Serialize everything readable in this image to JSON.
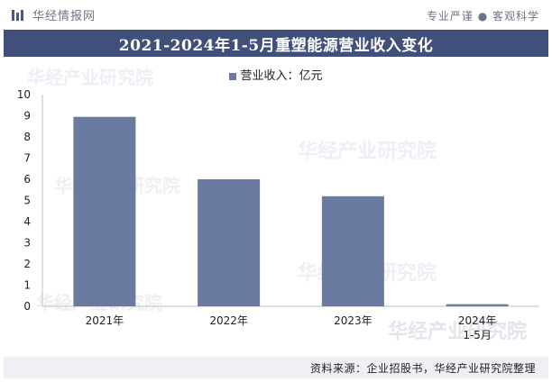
{
  "header": {
    "brand": "华经情报网",
    "slogan": "专业严谨 ● 客观科学"
  },
  "chart_data": {
    "type": "bar",
    "title": "2021-2024年1-5月重塑能源营业收入变化",
    "categories": [
      "2021年",
      "2022年",
      "2023年",
      "2024年\n1-5月"
    ],
    "series": [
      {
        "name": "营业收入：亿元",
        "values": [
          8.95,
          6.0,
          5.2,
          0.1
        ]
      }
    ],
    "ylim": [
      0,
      10
    ],
    "yticks": [
      0,
      1,
      2,
      3,
      4,
      5,
      6,
      7,
      8,
      9,
      10
    ],
    "grid": false,
    "legend": "top",
    "bar_color": "#6a7aa0"
  },
  "footer": {
    "source": "资料来源：企业招股书，华经产业研究院整理"
  },
  "watermark": {
    "name": "华经产业研究院",
    "url": "www.huaon.com"
  },
  "colors": {
    "title_band": "#41507b",
    "bar": "#6a7aa0",
    "footer_band": "#eef0f5"
  }
}
